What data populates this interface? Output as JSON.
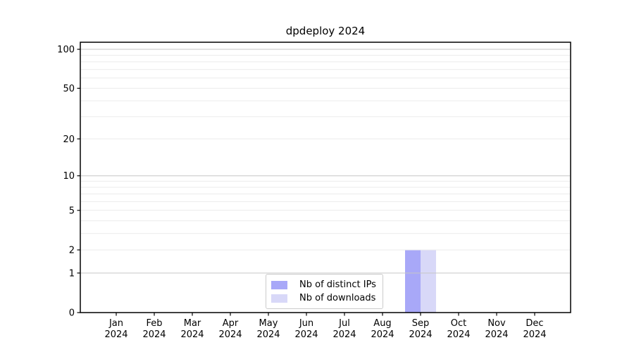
{
  "chart_data": {
    "type": "bar",
    "title": "dpdeploy 2024",
    "categories": [
      "Jan",
      "Feb",
      "Mar",
      "Apr",
      "May",
      "Jun",
      "Jul",
      "Aug",
      "Sep",
      "Oct",
      "Nov",
      "Dec"
    ],
    "x_year_label": "2024",
    "series": [
      {
        "name": "Nb of distinct IPs",
        "color": "#a8a8f8",
        "values": [
          0,
          0,
          0,
          0,
          0,
          0,
          0,
          0,
          2,
          0,
          0,
          0
        ]
      },
      {
        "name": "Nb of downloads",
        "color": "#d8d8f8",
        "values": [
          0,
          0,
          0,
          0,
          0,
          0,
          0,
          0,
          2,
          0,
          0,
          0
        ]
      }
    ],
    "yscale": "log1p",
    "ylim": [
      0,
      113.3
    ],
    "ytick_values": [
      0,
      1,
      2,
      5,
      10,
      20,
      50,
      100
    ],
    "ytick_labels": [
      "0",
      "1",
      "2",
      "5",
      "10",
      "20",
      "50",
      "100"
    ],
    "major_grid_values": [
      1,
      10,
      100
    ],
    "minor_grid_values": [
      2,
      3,
      4,
      5,
      6,
      7,
      8,
      9,
      20,
      30,
      40,
      50,
      60,
      70,
      80,
      90
    ],
    "grid": true,
    "legend_position": "inside lower center",
    "colors": {
      "major_grid": "#c6c6c6",
      "minor_grid": "#ebebeb",
      "spine": "#000000",
      "tick": "#000000",
      "text": "#000000",
      "background": "#ffffff"
    }
  }
}
